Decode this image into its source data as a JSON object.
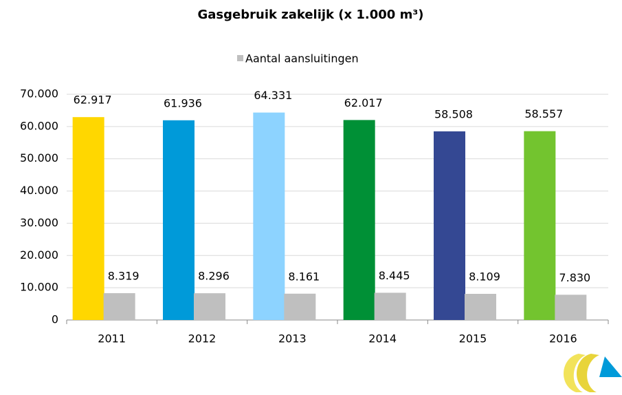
{
  "chart_data": {
    "type": "bar",
    "title": "Gasgebruik zakelijk (x 1.000 m³)",
    "categories": [
      "2011",
      "2012",
      "2013",
      "2014",
      "2015",
      "2016"
    ],
    "series": [
      {
        "colors": [
          "#ffd700",
          "#009ad9",
          "#8dd3ff",
          "#009036",
          "#344893",
          "#73c42f"
        ],
        "values": [
          62917,
          61936,
          64331,
          62017,
          58508,
          58557
        ],
        "value_labels": [
          "62.917",
          "61.936",
          "64.331",
          "62.017",
          "58.508",
          "58.557"
        ]
      },
      {
        "name": "Aantal aansluitingen",
        "color": "#bfbfbf",
        "values": [
          8319,
          8296,
          8161,
          8445,
          8109,
          7830
        ],
        "value_labels": [
          "8.319",
          "8.296",
          "8.161",
          "8.445",
          "8.109",
          "7.830"
        ]
      }
    ],
    "ylim": [
      0,
      70000
    ],
    "yticks": [
      0,
      {
        "value": 10000,
        "label": "10.000"
      },
      {
        "value": 20000,
        "label": "20.000"
      },
      {
        "value": 30000,
        "label": "30.000"
      },
      {
        "value": 40000,
        "label": "40.000"
      },
      {
        "value": 50000,
        "label": "50.000"
      },
      {
        "value": 60000,
        "label": "60.000"
      },
      {
        "value": 70000,
        "label": "70.000"
      }
    ],
    "grid": true,
    "legend": "top"
  }
}
